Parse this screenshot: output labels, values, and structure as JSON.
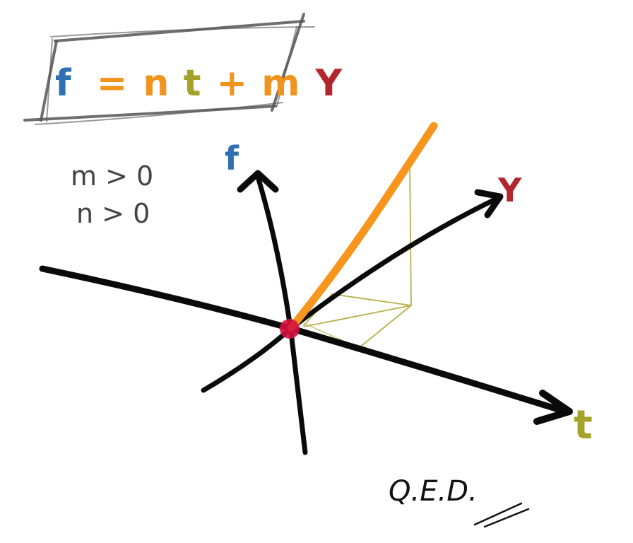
{
  "formula": {
    "parts": [
      {
        "text": "f",
        "color": "#2f6fb3"
      },
      {
        "text": "=",
        "color": "#f0941e"
      },
      {
        "text": "n",
        "color": "#f0941e"
      },
      {
        "text": "t",
        "color": "#a3a22a"
      },
      {
        "text": "+",
        "color": "#f0941e"
      },
      {
        "text": "m",
        "color": "#f0941e"
      },
      {
        "text": "Y",
        "color": "#b2252c"
      }
    ]
  },
  "conditions": [
    "m > 0",
    "n > 0"
  ],
  "axes": {
    "f": {
      "label": "f",
      "color": "#2f6fb3"
    },
    "t": {
      "label": "t",
      "color": "#a3a22a"
    },
    "y": {
      "label": "Y",
      "color": "#b2252c"
    }
  },
  "vector": {
    "color": "#f7951d"
  },
  "projection": {
    "color": "#b7b04a"
  },
  "origin": {
    "color": "#d6103f"
  },
  "footer": {
    "text": "Q.E.D."
  }
}
